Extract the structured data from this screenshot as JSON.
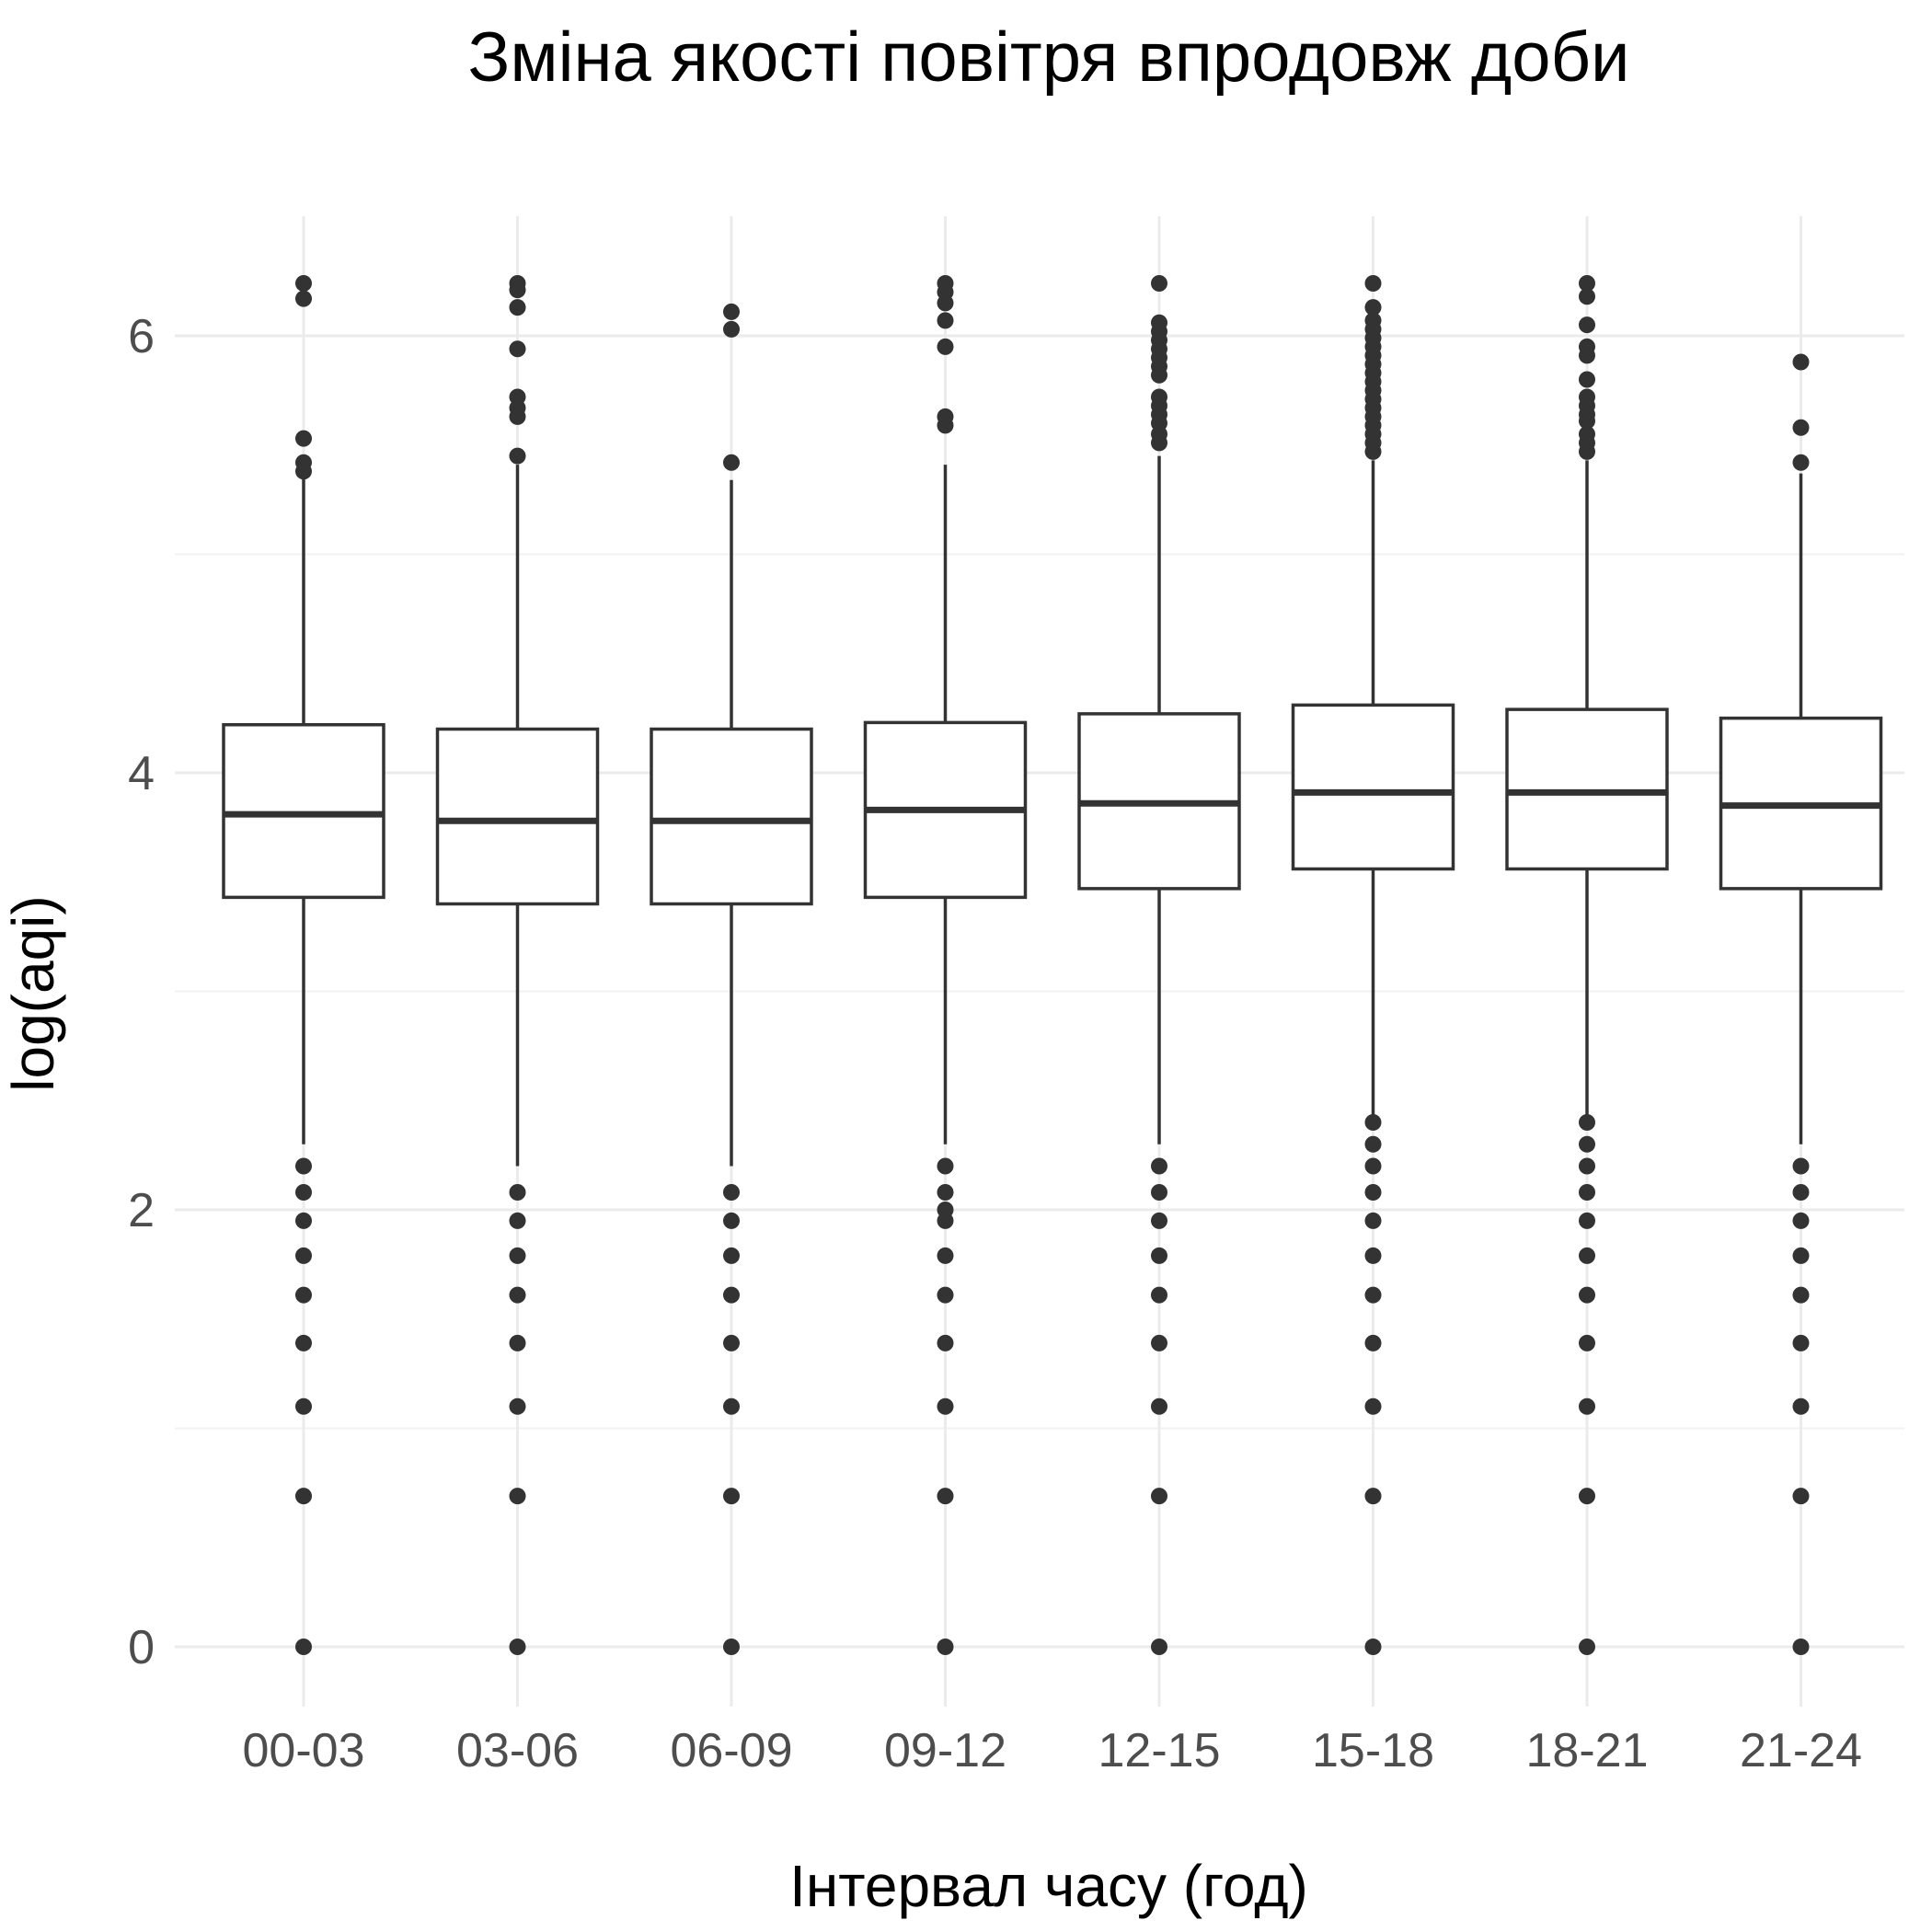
{
  "chart_data": {
    "type": "boxplot",
    "title": "Зміна якості повітря впродовж доби",
    "xlabel": "Інтервал часу (год)",
    "ylabel": "log(aqi)",
    "ylim": [
      -0.15,
      6.6
    ],
    "yticks": [
      0,
      2,
      4,
      6
    ],
    "grid": true,
    "categories": [
      "00-03",
      "03-06",
      "06-09",
      "09-12",
      "12-15",
      "15-18",
      "18-21",
      "21-24"
    ],
    "boxes": [
      {
        "q1": 3.43,
        "median": 3.81,
        "q3": 4.22,
        "whisker_low": 2.3,
        "whisker_high": 5.37,
        "outliers": [
          6.24,
          6.17,
          5.53,
          5.42,
          5.38,
          2.2,
          2.08,
          1.95,
          1.79,
          1.61,
          1.39,
          1.1,
          0.69,
          0
        ]
      },
      {
        "q1": 3.4,
        "median": 3.78,
        "q3": 4.2,
        "whisker_low": 2.2,
        "whisker_high": 5.41,
        "outliers": [
          6.24,
          6.21,
          6.13,
          5.94,
          5.72,
          5.67,
          5.63,
          5.45,
          2.08,
          1.95,
          1.79,
          1.61,
          1.39,
          1.1,
          0.69,
          0
        ]
      },
      {
        "q1": 3.4,
        "median": 3.78,
        "q3": 4.2,
        "whisker_low": 2.2,
        "whisker_high": 5.34,
        "outliers": [
          6.11,
          6.03,
          5.42,
          2.08,
          1.95,
          1.79,
          1.61,
          1.39,
          1.1,
          0.69,
          0
        ]
      },
      {
        "q1": 3.43,
        "median": 3.83,
        "q3": 4.23,
        "whisker_low": 2.3,
        "whisker_high": 5.41,
        "outliers": [
          6.24,
          6.2,
          6.15,
          6.07,
          5.95,
          5.63,
          5.59,
          2.2,
          2.08,
          2.0,
          1.95,
          1.79,
          1.61,
          1.39,
          1.1,
          0.69,
          0
        ]
      },
      {
        "q1": 3.47,
        "median": 3.86,
        "q3": 4.27,
        "whisker_low": 2.3,
        "whisker_high": 5.45,
        "outliers": [
          6.24,
          6.06,
          6.02,
          5.98,
          5.94,
          5.9,
          5.86,
          5.82,
          5.72,
          5.68,
          5.64,
          5.6,
          5.55,
          5.51,
          2.2,
          2.08,
          1.95,
          1.79,
          1.61,
          1.39,
          1.1,
          0.69,
          0
        ]
      },
      {
        "q1": 3.56,
        "median": 3.91,
        "q3": 4.31,
        "whisker_low": 2.4,
        "whisker_high": 5.43,
        "outliers": [
          6.24,
          6.13,
          6.07,
          6.03,
          5.99,
          5.95,
          5.91,
          5.87,
          5.83,
          5.79,
          5.75,
          5.71,
          5.67,
          5.63,
          5.59,
          5.55,
          5.51,
          5.47,
          2.4,
          2.3,
          2.2,
          2.08,
          1.95,
          1.79,
          1.61,
          1.39,
          1.1,
          0.69,
          0
        ]
      },
      {
        "q1": 3.56,
        "median": 3.91,
        "q3": 4.29,
        "whisker_low": 2.4,
        "whisker_high": 5.43,
        "outliers": [
          6.24,
          6.18,
          6.05,
          5.95,
          5.91,
          5.8,
          5.72,
          5.68,
          5.64,
          5.61,
          5.55,
          5.51,
          5.47,
          2.4,
          2.3,
          2.2,
          2.08,
          1.95,
          1.79,
          1.61,
          1.39,
          1.1,
          0.69,
          0
        ]
      },
      {
        "q1": 3.47,
        "median": 3.85,
        "q3": 4.25,
        "whisker_low": 2.3,
        "whisker_high": 5.37,
        "outliers": [
          5.88,
          5.58,
          5.42,
          2.2,
          2.08,
          1.95,
          1.79,
          1.61,
          1.39,
          1.1,
          0.69,
          0
        ]
      }
    ]
  }
}
